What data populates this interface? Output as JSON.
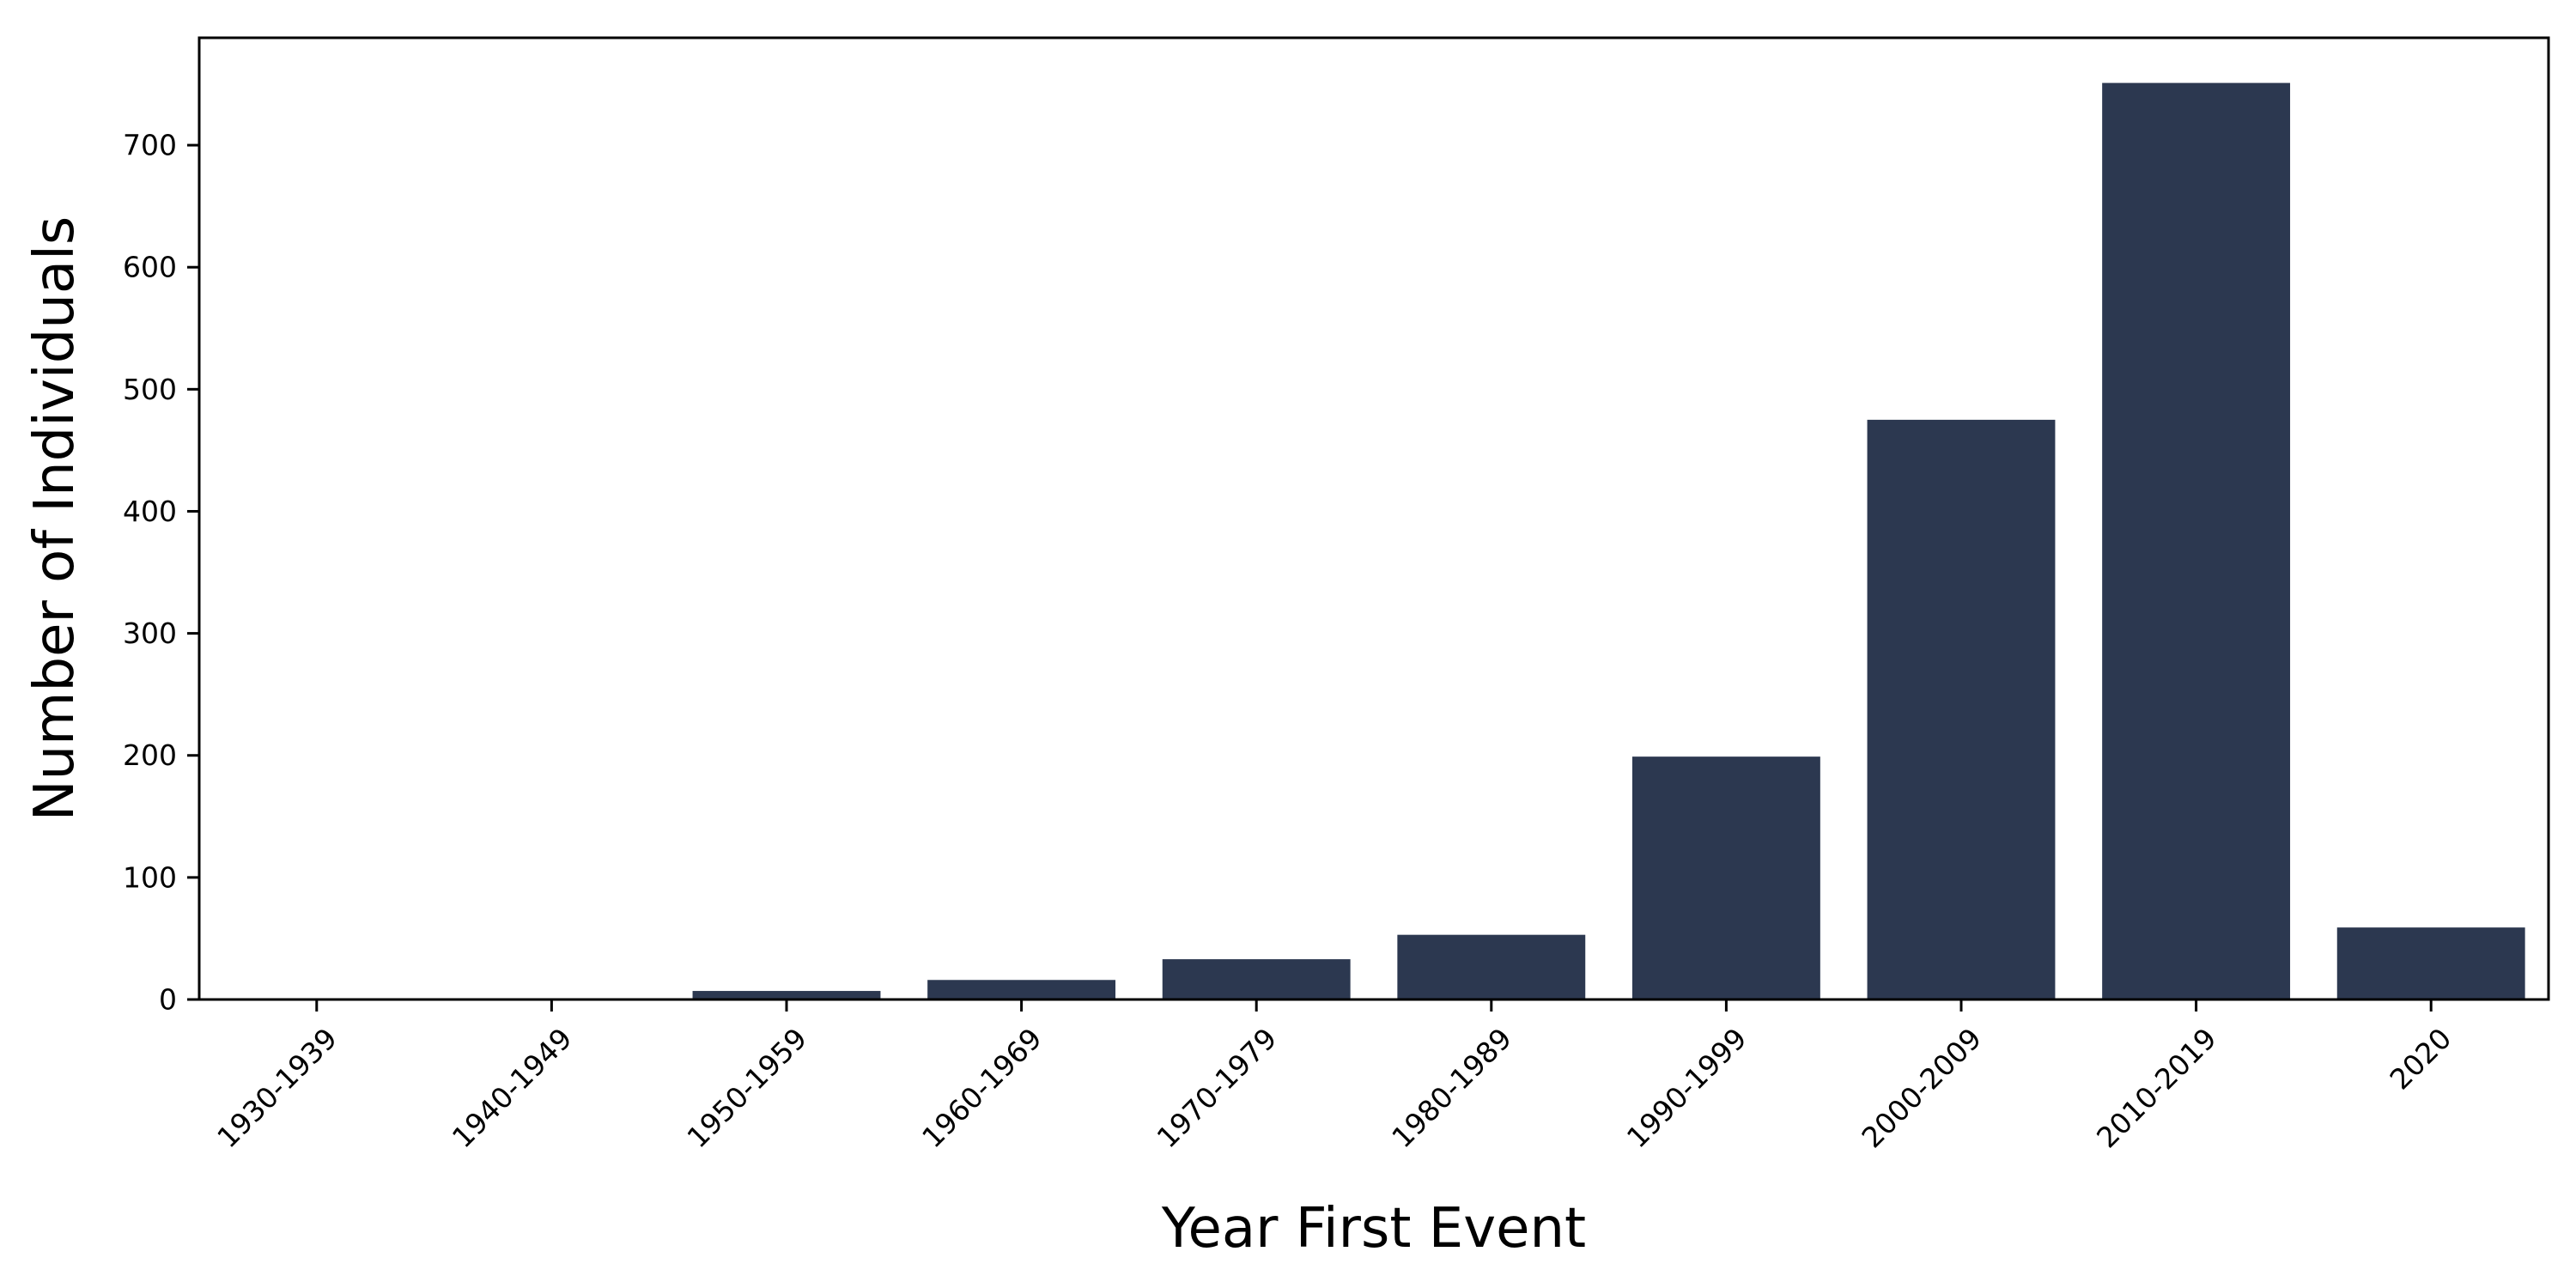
{
  "chart_data": {
    "type": "bar",
    "title": "",
    "xlabel": "Year First Event",
    "ylabel": "Number of Individuals",
    "categories": [
      "1930-1939",
      "1940-1949",
      "1950-1959",
      "1960-1969",
      "1970-1979",
      "1980-1989",
      "1990-1999",
      "2000-2009",
      "2010-2019",
      "2020"
    ],
    "values": [
      1,
      1,
      7,
      16,
      33,
      53,
      199,
      475,
      751,
      59
    ],
    "ylim": [
      0,
      788
    ],
    "yticks": [
      0,
      100,
      200,
      300,
      400,
      500,
      600,
      700
    ],
    "grid": false,
    "legend": "none",
    "bar_color": "#2c3850",
    "axis_color": "#000000"
  }
}
